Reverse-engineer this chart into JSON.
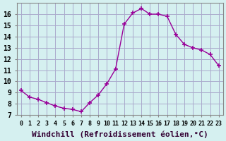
{
  "x": [
    0,
    1,
    2,
    3,
    4,
    5,
    6,
    7,
    8,
    9,
    10,
    11,
    12,
    13,
    14,
    15,
    16,
    17,
    18,
    19,
    20,
    21,
    22,
    23
  ],
  "y": [
    9.2,
    8.6,
    8.4,
    8.1,
    7.8,
    7.6,
    7.5,
    7.3,
    8.1,
    8.8,
    9.8,
    11.1,
    15.1,
    16.1,
    16.5,
    16.0,
    16.0,
    15.8,
    14.2,
    13.3,
    13.0,
    12.8,
    12.4,
    11.4
  ],
  "line_color": "#990099",
  "marker": "+",
  "marker_size": 5,
  "bg_color": "#d5f0f0",
  "grid_color": "#aaaacc",
  "xlabel": "Windchill (Refroidissement éolien,°C)",
  "xlabel_fontsize": 8,
  "ylabel_ticks": [
    7,
    8,
    9,
    10,
    11,
    12,
    13,
    14,
    15,
    16
  ],
  "xtick_labels": [
    "0",
    "1",
    "2",
    "3",
    "4",
    "5",
    "6",
    "7",
    "8",
    "9",
    "10",
    "11",
    "12",
    "13",
    "14",
    "15",
    "16",
    "17",
    "18",
    "19",
    "20",
    "21",
    "22",
    "23"
  ],
  "ylim": [
    7,
    17
  ],
  "xlim": [
    -0.5,
    23.5
  ]
}
